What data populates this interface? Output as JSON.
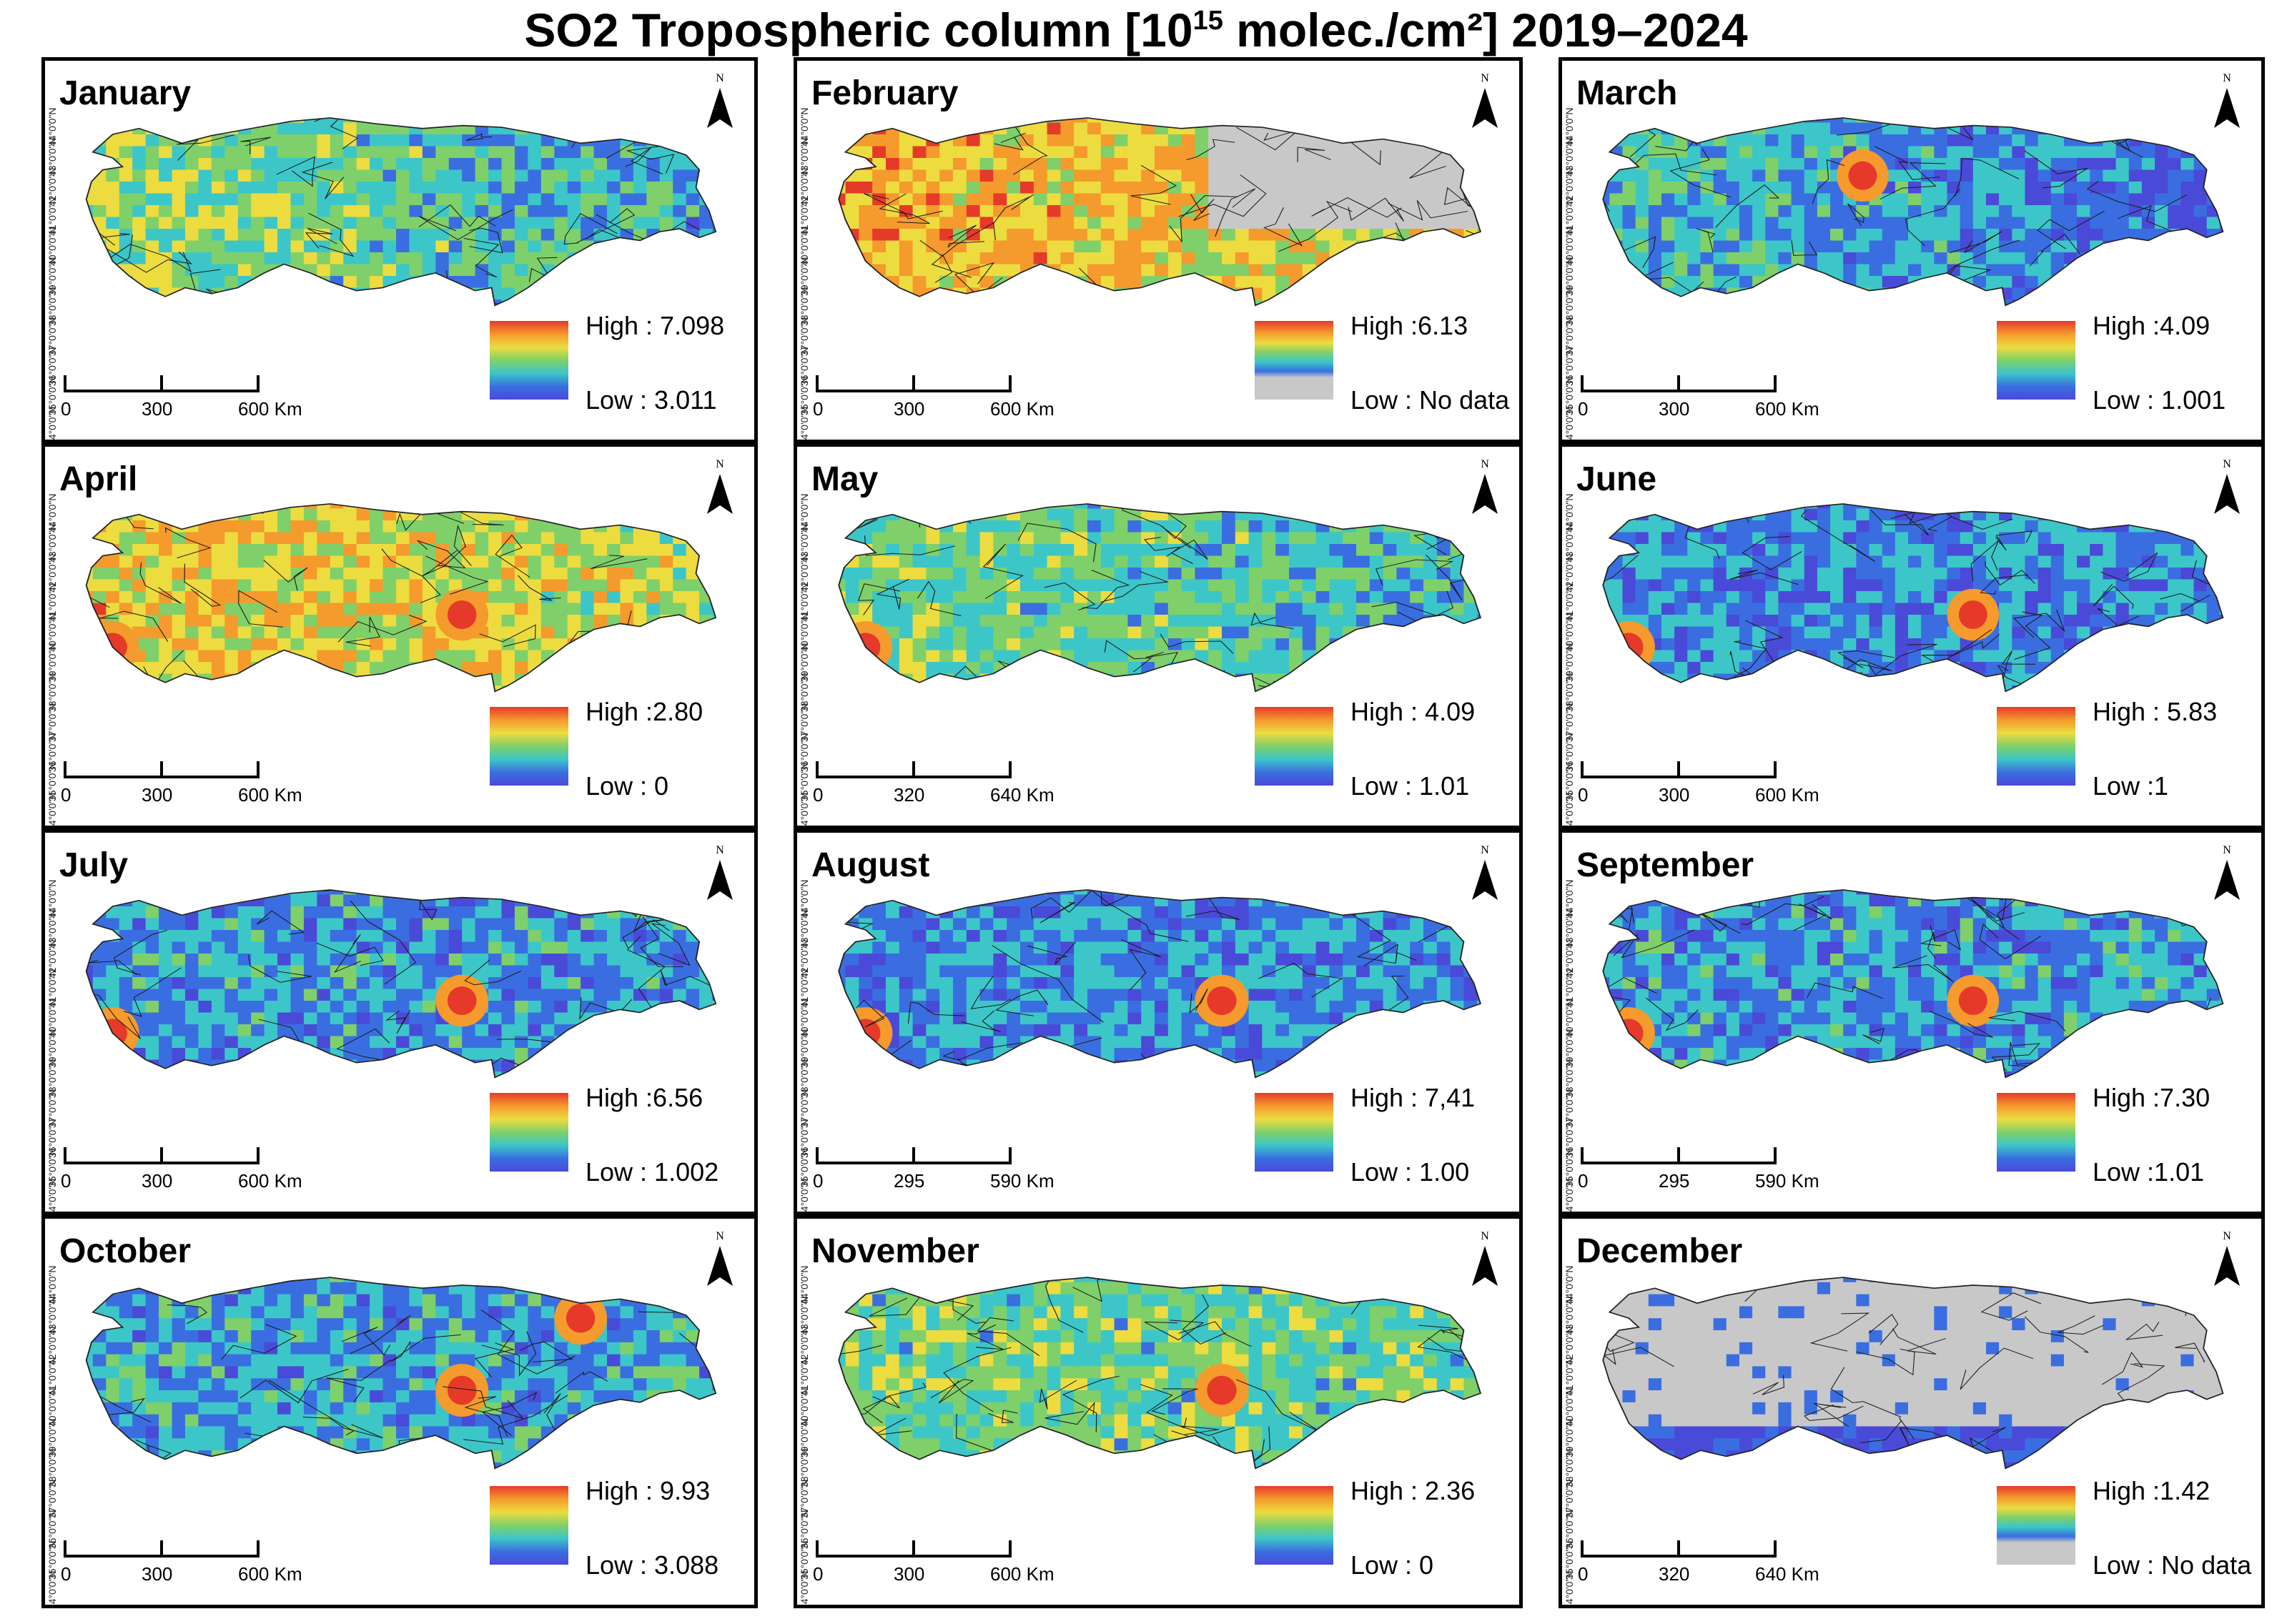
{
  "title": {
    "prefix": "SO2 Tropospheric column [10",
    "sup": "15",
    "suffix": " molec./cm²] 2019–2024"
  },
  "lat_ticks": [
    "44°0'0\"N",
    "43°0'0\"N",
    "42°0'0\"N",
    "41°0'0\"N",
    "40°0'0\"N",
    "39°0'0\"N",
    "38°0'0\"N",
    "37°0'0\"N",
    "36°0'0\"N",
    "35°0'0\"N",
    "34°0'0\"N"
  ],
  "north_label": "N",
  "colors": {
    "high": "#e53a2a",
    "orange": "#f59a2c",
    "yellow": "#ecdc40",
    "green": "#7fd06a",
    "cyan": "#3cc6c8",
    "blue": "#3a6ee0",
    "low": "#4a4ad8",
    "nodata": "#c8c8c8"
  },
  "panels": [
    {
      "month": "January",
      "high": "High : 7.098",
      "low": "Low : 3.011",
      "scale": [
        "0",
        "300",
        "600 Km"
      ],
      "bias": 0.55,
      "nodata": "none",
      "hotspots": []
    },
    {
      "month": "February",
      "high": "High :6.13",
      "low": "Low : No data",
      "scale": [
        "0",
        "300",
        "600 Km"
      ],
      "bias": 0.6,
      "nodata": "east",
      "hotspots": []
    },
    {
      "month": "March",
      "high": "High :4.09",
      "low": "Low : 1.001",
      "scale": [
        "0",
        "300",
        "600 Km"
      ],
      "bias": 0.4,
      "nodata": "none",
      "hotspots": [
        "central-north"
      ]
    },
    {
      "month": "April",
      "high": "High :2.80",
      "low": "Low : 0",
      "scale": [
        "0",
        "300",
        "600 Km"
      ],
      "bias": 0.55,
      "nodata": "none",
      "hotspots": [
        "southwest",
        "southeast"
      ]
    },
    {
      "month": "May",
      "high": "High : 4.09",
      "low": "Low : 1.01",
      "scale": [
        "0",
        "320",
        "640 Km"
      ],
      "bias": 0.35,
      "nodata": "none",
      "hotspots": [
        "southwest"
      ]
    },
    {
      "month": "June",
      "high": "High : 5.83",
      "low": "Low :1",
      "scale": [
        "0",
        "300",
        "600 Km"
      ],
      "bias": 0.25,
      "nodata": "none",
      "hotspots": [
        "southwest",
        "southeast"
      ]
    },
    {
      "month": "July",
      "high": "High :6.56",
      "low": "Low : 1.002",
      "scale": [
        "0",
        "300",
        "600 Km"
      ],
      "bias": 0.28,
      "nodata": "none",
      "hotspots": [
        "southwest",
        "southeast"
      ]
    },
    {
      "month": "August",
      "high": "High : 7,41",
      "low": "Low : 1.00",
      "scale": [
        "0",
        "295",
        "590 Km"
      ],
      "bias": 0.25,
      "nodata": "none",
      "hotspots": [
        "southwest",
        "southeast"
      ]
    },
    {
      "month": "September",
      "high": "High :7.30",
      "low": "Low :1.01",
      "scale": [
        "0",
        "295",
        "590 Km"
      ],
      "bias": 0.28,
      "nodata": "none",
      "hotspots": [
        "southwest",
        "southeast"
      ]
    },
    {
      "month": "October",
      "high": "High : 9.93",
      "low": "Low : 3.088",
      "scale": [
        "0",
        "300",
        "600 Km"
      ],
      "bias": 0.3,
      "nodata": "none",
      "hotspots": [
        "southeast",
        "northeast"
      ]
    },
    {
      "month": "November",
      "high": "High : 2.36",
      "low": "Low : 0",
      "scale": [
        "0",
        "300",
        "600 Km"
      ],
      "bias": 0.45,
      "nodata": "none",
      "hotspots": [
        "southeast"
      ]
    },
    {
      "month": "December",
      "high": "High :1.42",
      "low": "Low : No data",
      "scale": [
        "0",
        "320",
        "640 Km"
      ],
      "bias": 0.1,
      "nodata": "most",
      "hotspots": []
    }
  ]
}
